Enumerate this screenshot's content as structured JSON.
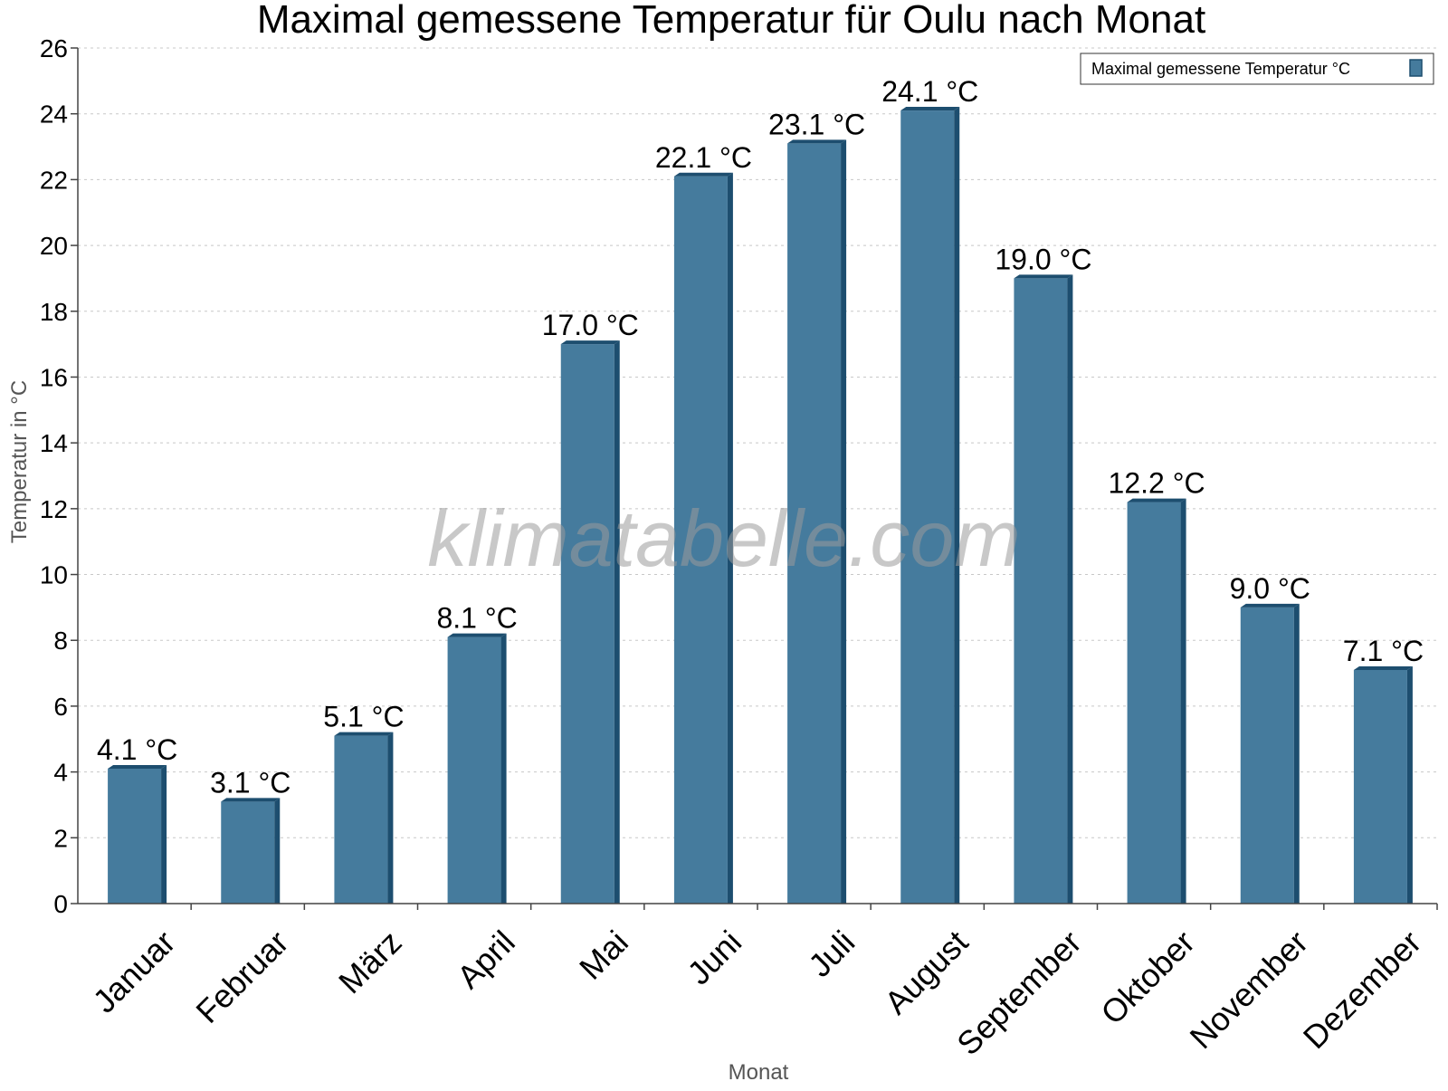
{
  "chart_data": {
    "type": "bar",
    "title": "Maximal gemessene Temperatur für Oulu nach Monat",
    "xlabel": "Monat",
    "ylabel": "Temperatur in °C",
    "ylim": [
      0,
      26
    ],
    "yticks": [
      0,
      2,
      4,
      6,
      8,
      10,
      12,
      14,
      16,
      18,
      20,
      22,
      24,
      26
    ],
    "grid": true,
    "legend_position": "top-right",
    "categories": [
      "Januar",
      "Februar",
      "März",
      "April",
      "Mai",
      "Juni",
      "Juli",
      "August",
      "September",
      "Oktober",
      "November",
      "Dezember"
    ],
    "series": [
      {
        "name": "Maximal gemessene Temperatur °C",
        "values": [
          4.1,
          3.1,
          5.1,
          8.1,
          17.0,
          22.1,
          23.1,
          24.1,
          19.0,
          12.2,
          9.0,
          7.1
        ],
        "labels": [
          "4.1 °C",
          "3.1 °C",
          "5.1 °C",
          "8.1 °C",
          "17.0 °C",
          "22.1 °C",
          "23.1 °C",
          "24.1 °C",
          "19.0 °C",
          "12.2 °C",
          "9.0 °C",
          "7.1 °C"
        ]
      }
    ],
    "colors": {
      "bar_front": "#457b9d",
      "bar_side": "#1d4e6f",
      "bar_top": "#1d4e6f"
    }
  },
  "watermark": "klimatabelle.com"
}
